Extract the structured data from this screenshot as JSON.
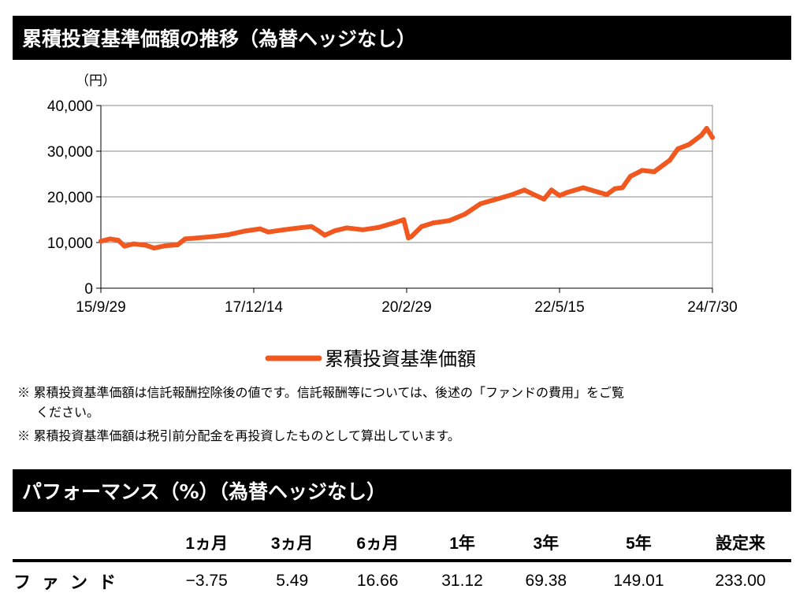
{
  "title": "累積投資基準価額の推移（為替ヘッジなし）",
  "chart_data": {
    "type": "line",
    "ylabel": "（円）",
    "ylim": [
      0,
      40000
    ],
    "yticks": [
      "0",
      "10,000",
      "20,000",
      "30,000",
      "40,000"
    ],
    "yvals": [
      0,
      10000,
      20000,
      30000,
      40000
    ],
    "x_unit": "months since 2015/9/29",
    "xlim": [
      0,
      106
    ],
    "xticks": [
      {
        "label": "15/9/29",
        "m": 0
      },
      {
        "label": "17/12/14",
        "m": 26.5
      },
      {
        "label": "20/2/29",
        "m": 53
      },
      {
        "label": "22/5/15",
        "m": 79.5
      },
      {
        "label": "24/7/30",
        "m": 106
      }
    ],
    "legend": "累積投資基準価額",
    "legend_position": "bottom",
    "color": "#f0581f",
    "series": [
      {
        "name": "累積投資基準価額",
        "x": [
          0,
          1.6,
          3,
          4.1,
          5.7,
          7.8,
          9.2,
          11.2,
          13.3,
          14.6,
          16.7,
          19.4,
          22.1,
          24.9,
          27.6,
          29,
          31.7,
          34.4,
          36.5,
          37.8,
          38.8,
          40.6,
          42.6,
          45.4,
          48.1,
          50.8,
          52.5,
          53.3,
          53.8,
          55.6,
          57.6,
          60.4,
          63.1,
          65.8,
          68.6,
          71.3,
          73.4,
          75.4,
          76.8,
          78.1,
          79.5,
          80.9,
          83.6,
          86.3,
          87.7,
          89.1,
          90.4,
          91.8,
          93.8,
          95.9,
          97.3,
          98.6,
          100,
          102,
          104.1,
          105,
          106
        ],
        "values": [
          10300,
          10800,
          10500,
          9200,
          9700,
          9400,
          8800,
          9300,
          9500,
          10800,
          11000,
          11300,
          11700,
          12500,
          13000,
          12300,
          12800,
          13200,
          13500,
          12500,
          11600,
          12600,
          13200,
          12800,
          13300,
          14300,
          15000,
          11000,
          11300,
          13500,
          14300,
          14800,
          16200,
          18500,
          19500,
          20500,
          21500,
          20300,
          19500,
          21500,
          20300,
          21000,
          22000,
          21000,
          20500,
          21800,
          22000,
          24500,
          25800,
          25500,
          26800,
          28000,
          30500,
          31500,
          33500,
          35000,
          33000
        ]
      }
    ]
  },
  "notes": [
    "※ 累積投資基準価額は信託報酬控除後の値です。信託報酬等については、後述の「ファンドの費用」をご覧",
    "ください。",
    "※ 累積投資基準価額は税引前分配金を再投資したものとして算出しています。"
  ],
  "perf": {
    "title": "パフォーマンス（%）（為替ヘッジなし）",
    "headers": [
      "",
      "1ヵ月",
      "3ヵ月",
      "6ヵ月",
      "1年",
      "3年",
      "5年",
      "設定来"
    ],
    "row": {
      "label": "ファンド",
      "values": [
        "−3.75",
        "5.49",
        "16.66",
        "31.12",
        "69.38",
        "149.01",
        "233.00"
      ]
    }
  }
}
